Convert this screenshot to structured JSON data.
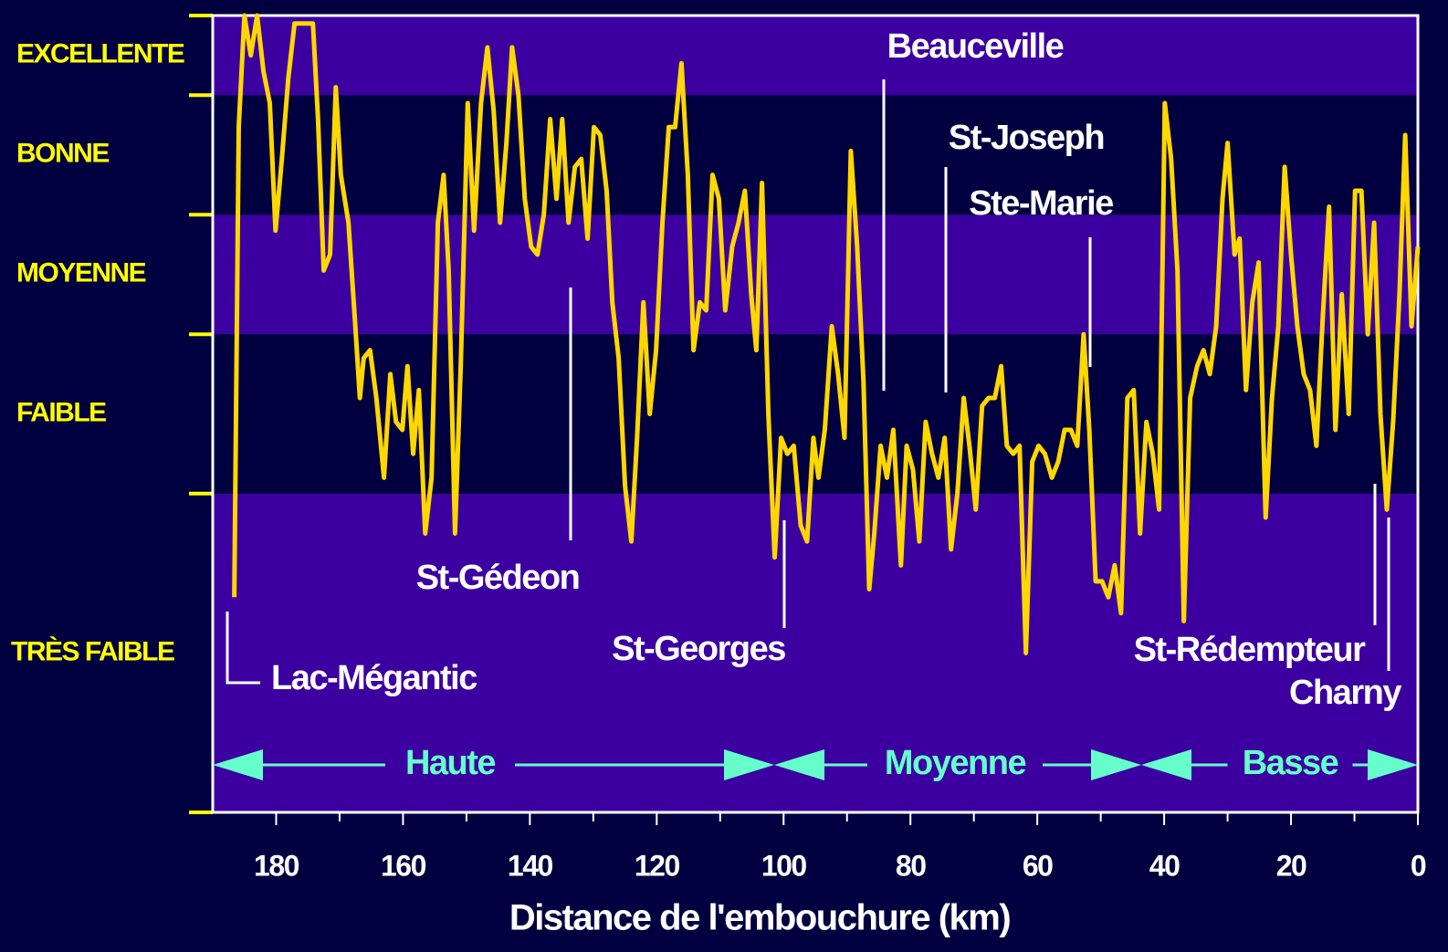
{
  "chart_data": {
    "type": "line",
    "xlabel": "Distance  de l'embouchure (km)",
    "xlim": [
      190,
      0
    ],
    "xticks": [
      0,
      20,
      40,
      60,
      80,
      100,
      120,
      140,
      160,
      180
    ],
    "xminor_ticks": [
      10,
      30,
      50,
      70,
      90,
      110,
      130,
      150,
      170
    ],
    "ylim": [
      0,
      100
    ],
    "bands": [
      {
        "label": "TRÈS FAIBLE",
        "from": 0,
        "to": 40,
        "color": "#3c00a0"
      },
      {
        "label": "FAIBLE",
        "from": 40,
        "to": 60,
        "color": "#000040"
      },
      {
        "label": "MOYENNE",
        "from": 60,
        "to": 75,
        "color": "#3c00a0"
      },
      {
        "label": "BONNE",
        "from": 75,
        "to": 90,
        "color": "#000040"
      },
      {
        "label": "EXCELLENTE",
        "from": 90,
        "to": 100,
        "color": "#3c00a0"
      }
    ],
    "x": [
      186.6,
      185.9,
      185.0,
      184.0,
      183.0,
      182.0,
      181.0,
      180.1,
      179.1,
      178.1,
      177.1,
      174.2,
      173.4,
      172.5,
      171.5,
      170.6,
      169.8,
      168.6,
      167.6,
      166.8,
      166.2,
      165.2,
      164.2,
      163.0,
      162.0,
      161.1,
      160.1,
      159.3,
      158.4,
      157.5,
      156.5,
      155.5,
      154.5,
      153.6,
      152.8,
      151.8,
      150.9,
      149.8,
      148.8,
      147.7,
      146.7,
      145.7,
      144.7,
      143.7,
      142.8,
      141.8,
      140.8,
      139.8,
      138.8,
      137.8,
      136.8,
      135.8,
      134.9,
      133.9,
      132.9,
      131.9,
      130.9,
      129.9,
      128.9,
      127.9,
      127.0,
      126.0,
      125.0,
      124.0,
      123.1,
      122.1,
      121.1,
      120.1,
      119.1,
      118.1,
      117.1,
      116.1,
      115.1,
      114.2,
      113.2,
      112.2,
      111.2,
      110.2,
      109.2,
      108.1,
      107.1,
      106.1,
      105.1,
      104.3,
      103.4,
      102.4,
      101.4,
      100.4,
      99.4,
      98.4,
      97.3,
      96.3,
      95.3,
      94.5,
      93.5,
      92.4,
      91.4,
      90.4,
      89.4,
      88.4,
      87.4,
      86.5,
      85.7,
      84.7,
      83.7,
      82.7,
      81.5,
      80.6,
      79.6,
      78.6,
      77.6,
      76.6,
      75.6,
      74.6,
      73.6,
      72.6,
      71.6,
      70.7,
      69.7,
      68.7,
      67.7,
      66.7,
      65.7,
      64.8,
      63.8,
      62.8,
      61.8,
      60.8,
      59.8,
      58.8,
      57.7,
      56.7,
      55.7,
      54.7,
      53.7,
      52.7,
      51.8,
      50.8,
      49.8,
      48.8,
      47.8,
      46.8,
      45.8,
      44.8,
      43.8,
      42.8,
      41.8,
      40.8,
      39.9,
      38.9,
      37.9,
      36.9,
      35.9,
      34.8,
      33.8,
      32.8,
      31.8,
      30.8,
      30.0,
      28.9,
      28.1,
      27.1,
      26.1,
      25.1,
      24.0,
      23.0,
      22.0,
      21.0,
      20.0,
      19.0,
      18.0,
      17.0,
      16.0,
      15.0,
      14.0,
      13.0,
      12.0,
      10.9,
      9.9,
      8.9,
      7.9,
      6.9,
      5.9,
      4.9,
      3.9,
      2.9,
      2.0,
      1.0,
      0
    ],
    "series": [
      {
        "color": "#ffd700",
        "values": [
          27,
          86,
          100,
          95,
          100,
          93,
          89,
          73,
          82,
          92,
          99,
          99,
          87,
          68,
          70,
          91,
          80,
          74,
          62,
          52,
          57,
          58,
          52,
          42,
          55,
          49,
          48,
          56,
          45,
          53,
          35,
          42,
          74,
          80,
          68,
          35,
          56,
          89,
          73,
          89,
          96,
          88,
          74,
          84,
          96,
          90,
          77,
          71,
          70,
          75,
          87,
          77,
          87,
          74,
          81,
          82,
          72,
          86,
          85,
          78,
          64,
          57,
          41,
          34,
          47,
          64,
          50,
          58,
          74,
          86,
          86,
          94,
          80,
          58,
          64,
          63,
          80,
          77,
          63,
          71,
          74,
          78,
          65,
          58,
          79,
          50,
          32,
          47,
          45,
          46,
          36,
          34,
          47,
          42,
          48,
          61,
          55,
          47,
          83,
          71,
          54,
          28,
          35,
          46,
          42,
          48,
          31,
          46,
          43,
          34,
          49,
          45,
          42,
          47,
          33,
          40,
          52,
          46,
          38,
          51,
          52,
          52,
          56,
          46,
          45,
          46,
          20,
          44,
          46,
          45,
          42,
          44,
          48,
          48,
          46,
          60,
          48,
          29,
          29,
          27,
          31,
          25,
          52,
          53,
          35,
          49,
          45,
          38,
          89,
          82,
          68,
          24,
          52,
          56,
          58,
          55,
          61,
          77,
          84,
          70,
          72,
          53,
          64,
          69,
          37,
          52,
          61,
          81,
          70,
          61,
          55,
          53,
          46,
          62,
          76,
          48,
          65,
          50,
          78,
          78,
          60,
          74,
          50,
          38,
          49,
          65,
          85,
          61,
          71
        ]
      }
    ],
    "annotations": [
      "Lac-Mégantic",
      "St-Gédeon",
      "St-Georges",
      "Beauceville",
      "St-Joseph",
      "Ste-Marie",
      "St-Rédempteur",
      "Charny"
    ],
    "segments": [
      "Haute",
      "Moyenne",
      "Basse"
    ]
  }
}
